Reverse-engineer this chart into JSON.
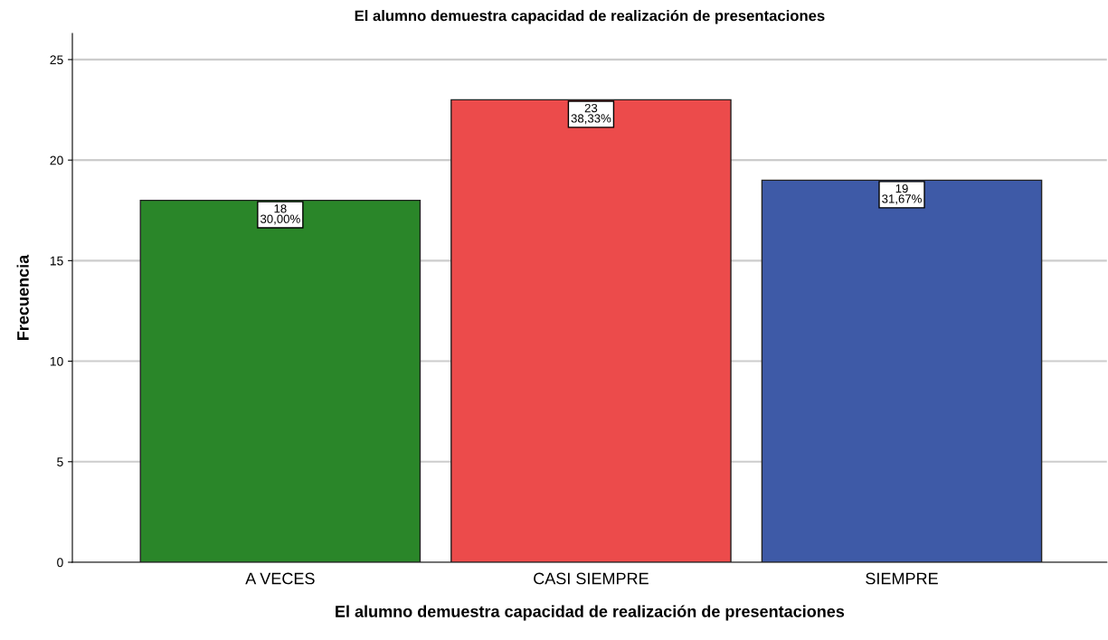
{
  "chart_data": {
    "type": "bar",
    "title": "El alumno demuestra capacidad de realización de presentaciones",
    "xlabel": "El alumno demuestra capacidad de realización de presentaciones",
    "ylabel": "Frecuencia",
    "categories": [
      "A VECES",
      "CASI SIEMPRE",
      "SIEMPRE"
    ],
    "values": [
      18,
      23,
      19
    ],
    "colors": [
      "#2a8629",
      "#ec4b4b",
      "#3e5aa7"
    ],
    "value_labels": [
      "18\n30,00%",
      "23\n38,33%",
      "19\n31,67%"
    ],
    "ylim": [
      0,
      26.3
    ],
    "yticks": [
      0,
      5,
      10,
      15,
      20,
      25
    ],
    "grid": "y",
    "legend": false
  }
}
